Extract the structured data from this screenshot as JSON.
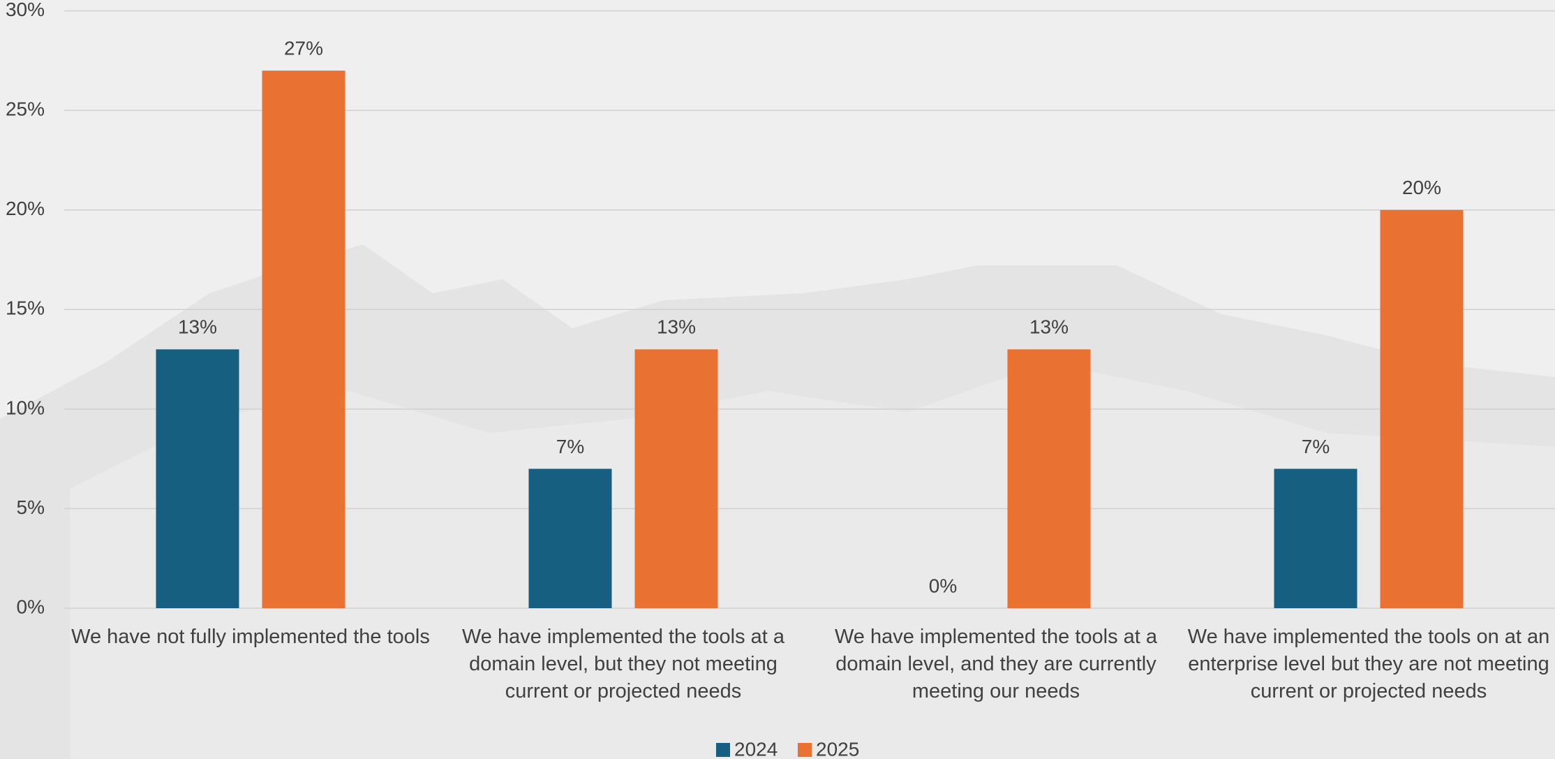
{
  "chart_data": {
    "type": "bar",
    "categories": [
      "We have not fully implemented the tools",
      "We have implemented the tools at a domain level, but they not meeting current or projected needs",
      "We have implemented the tools at a domain level, and they are currently meeting our needs",
      "We have implemented the tools on at an enterprise level but they are not meeting current or projected needs"
    ],
    "series": [
      {
        "name": "2024",
        "color": "#175f80",
        "values": [
          13,
          7,
          0,
          7
        ],
        "value_labels": [
          "13%",
          "7%",
          "0%",
          "7%"
        ]
      },
      {
        "name": "2025",
        "color": "#e97132",
        "values": [
          27,
          13,
          13,
          20
        ],
        "value_labels": [
          "27%",
          "13%",
          "13%",
          "20%"
        ]
      }
    ],
    "ylim": [
      0,
      30
    ],
    "yticks": [
      {
        "value": 0,
        "label": "0%"
      },
      {
        "value": 5,
        "label": "5%"
      },
      {
        "value": 10,
        "label": "10%"
      },
      {
        "value": 15,
        "label": "15%"
      },
      {
        "value": 20,
        "label": "20%"
      },
      {
        "value": 25,
        "label": "25%"
      },
      {
        "value": 30,
        "label": "30%"
      }
    ],
    "grid": true,
    "legend": "bottom"
  }
}
